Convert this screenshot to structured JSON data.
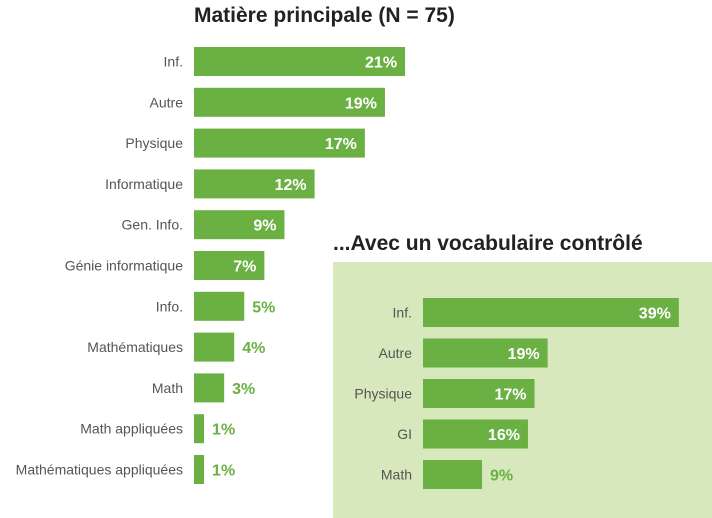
{
  "colors": {
    "bar": "#6ab043",
    "inset_background": "#d6e8bc",
    "label_inside": "#ffffff",
    "label_outside": "#6ab043"
  },
  "chart_data": [
    {
      "type": "bar",
      "orientation": "horizontal",
      "title": "Matière principale (N = 75)",
      "categories": [
        "Inf.",
        "Autre",
        "Physique",
        "Informatique",
        "Gen. Info.",
        "Génie informatique",
        "Info.",
        "Mathématiques",
        "Math",
        "Math appliquées",
        "Mathématiques appliquées"
      ],
      "values": [
        21,
        19,
        17,
        12,
        9,
        7,
        5,
        4,
        3,
        1,
        1
      ],
      "value_labels": [
        "21%",
        "19%",
        "17%",
        "12%",
        "9%",
        "7%",
        "5%",
        "4%",
        "3%",
        "1%",
        "1%"
      ],
      "unit": "%"
    },
    {
      "type": "bar",
      "orientation": "horizontal",
      "title": "...Avec un vocabulaire contrôlé",
      "categories": [
        "Inf.",
        "Autre",
        "Physique",
        "GI",
        "Math"
      ],
      "values": [
        39,
        19,
        17,
        16,
        9
      ],
      "value_labels": [
        "39%",
        "19%",
        "17%",
        "16%",
        "9%"
      ],
      "unit": "%"
    }
  ]
}
